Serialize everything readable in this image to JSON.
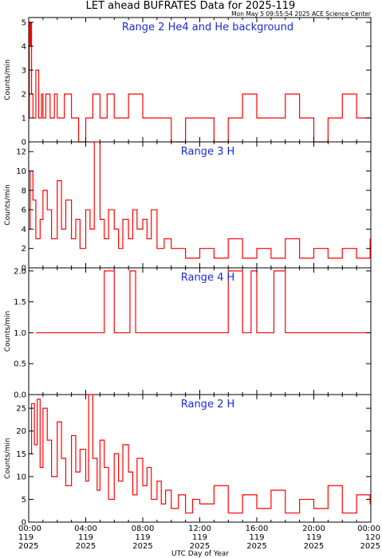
{
  "title": "LET ahead BUFRATES Data for 2025-119",
  "timestamp": "Mon May  5 09:55:54 2025 ACE Science Center",
  "xlabel": "UTC Day of Year",
  "colors": {
    "data": "#ff0000",
    "panel_title": "#1a2bd6",
    "axes": "#000000"
  },
  "chart_data": [
    {
      "type": "line",
      "title": "Range 2 He4 and He background",
      "ylabel": "Counts/min",
      "ylim": [
        0,
        5.2
      ],
      "yticks": [
        "0",
        "1",
        "2",
        "3",
        "4",
        "5"
      ],
      "xlim": [
        0,
        24
      ],
      "series": [
        {
          "color": "#ff0000",
          "x": [
            0.0,
            0.05,
            0.1,
            0.15,
            0.2,
            0.3,
            0.5,
            0.7,
            0.9,
            1.0,
            1.2,
            1.5,
            1.8,
            2.0,
            2.5,
            3.0,
            3.5,
            4.0,
            4.5,
            5.0,
            5.5,
            6.0,
            6.5,
            7.0,
            8.0,
            9.0,
            10.0,
            11.0,
            12.0,
            13.0,
            14.0,
            15.0,
            16.0,
            17.0,
            18.0,
            19.0,
            20.0,
            21.0,
            22.0,
            23.0,
            23.95
          ],
          "values": [
            1,
            5,
            4,
            5,
            2,
            1,
            3,
            1,
            2,
            1,
            2,
            1,
            2,
            1,
            2,
            1,
            0,
            1,
            2,
            1,
            2,
            1,
            1,
            2,
            1,
            1,
            0,
            1,
            1,
            0,
            1,
            2,
            1,
            1,
            2,
            1,
            0,
            1,
            2,
            1,
            1
          ]
        }
      ]
    },
    {
      "type": "line",
      "title": "Range 3 H",
      "ylabel": "Counts/min",
      "ylim": [
        0,
        13
      ],
      "yticks": [
        "0",
        "2",
        "4",
        "6",
        "8",
        "10",
        "12"
      ],
      "xlim": [
        0,
        24
      ],
      "series": [
        {
          "color": "#ff0000",
          "x": [
            0.0,
            0.1,
            0.3,
            0.5,
            0.8,
            1.0,
            1.3,
            1.6,
            2.0,
            2.3,
            2.6,
            3.0,
            3.3,
            3.6,
            4.0,
            4.3,
            4.6,
            5.0,
            5.3,
            5.6,
            6.0,
            6.3,
            6.6,
            7.0,
            7.3,
            7.6,
            8.0,
            8.3,
            8.6,
            9.0,
            9.5,
            10.0,
            11.0,
            12.0,
            13.0,
            14.0,
            15.0,
            16.0,
            17.0,
            18.0,
            19.0,
            20.0,
            21.0,
            22.0,
            23.0,
            23.95
          ],
          "values": [
            4,
            10,
            7,
            3,
            5,
            8,
            6,
            3,
            9,
            4,
            7,
            3,
            5,
            2,
            6,
            4,
            13,
            5,
            3,
            6,
            4,
            2,
            5,
            3,
            6,
            4,
            5,
            3,
            6,
            2,
            3,
            2,
            1,
            2,
            1,
            3,
            1,
            2,
            1,
            3,
            1,
            2,
            1,
            2,
            1,
            3
          ]
        }
      ]
    },
    {
      "type": "line",
      "title": "Range 4 H",
      "ylabel": "Counts/min",
      "ylim": [
        0,
        2.05
      ],
      "yticks": [
        "0.0",
        "0.5",
        "1.0",
        "1.5",
        "2.0"
      ],
      "xlim": [
        0,
        24
      ],
      "series": [
        {
          "color": "#ff0000",
          "x": [
            0.5,
            1.0,
            1.5,
            2.0,
            2.5,
            3.0,
            3.5,
            4.0,
            4.5,
            5.0,
            5.3,
            6.0,
            6.5,
            7.1,
            7.5,
            8.0,
            9.0,
            10.0,
            11.0,
            12.0,
            13.0,
            14.0,
            15.0,
            15.6,
            16.0,
            17.2,
            18.0,
            19.0,
            20.0,
            21.0,
            22.0,
            23.0
          ],
          "values": [
            1,
            1,
            1,
            1,
            1,
            1,
            1,
            1,
            1,
            1,
            2,
            1,
            1,
            2,
            1,
            1,
            1,
            1,
            1,
            1,
            1,
            2,
            1,
            2,
            1,
            2,
            1,
            1,
            1,
            1,
            1,
            1
          ]
        }
      ]
    },
    {
      "type": "line",
      "title": "Range 2 H",
      "ylabel": "Counts/min",
      "ylim": [
        0,
        28
      ],
      "yticks": [
        "0",
        "5",
        "10",
        "15",
        "20",
        "25"
      ],
      "xlim": [
        0,
        24
      ],
      "xticks": [
        {
          "time": "00:00",
          "day": "119",
          "year": "2025"
        },
        {
          "time": "04:00",
          "day": "119",
          "year": "2025"
        },
        {
          "time": "08:00",
          "day": "119",
          "year": "2025"
        },
        {
          "time": "12:00",
          "day": "119",
          "year": "2025"
        },
        {
          "time": "16:00",
          "day": "119",
          "year": "2025"
        },
        {
          "time": "20:00",
          "day": "119",
          "year": "2025"
        },
        {
          "time": "00:00",
          "day": "120",
          "year": "2025"
        }
      ],
      "series": [
        {
          "color": "#ff0000",
          "x": [
            0.0,
            0.2,
            0.4,
            0.6,
            0.8,
            1.0,
            1.3,
            1.6,
            2.0,
            2.3,
            2.6,
            3.0,
            3.3,
            3.6,
            4.0,
            4.2,
            4.5,
            4.8,
            5.0,
            5.3,
            5.6,
            6.0,
            6.3,
            6.6,
            7.0,
            7.3,
            7.6,
            8.0,
            8.3,
            8.6,
            9.0,
            9.3,
            9.6,
            10.0,
            10.5,
            11.0,
            11.5,
            12.0,
            13.0,
            14.0,
            15.0,
            16.0,
            17.0,
            18.0,
            19.0,
            20.0,
            21.0,
            22.0,
            23.0,
            23.95
          ],
          "values": [
            15,
            26,
            17,
            27,
            12,
            25,
            18,
            10,
            22,
            14,
            8,
            19,
            11,
            16,
            9,
            28,
            14,
            7,
            18,
            12,
            5,
            15,
            9,
            17,
            11,
            6,
            14,
            8,
            12,
            5,
            9,
            4,
            7,
            3,
            6,
            2,
            5,
            4,
            8,
            2,
            6,
            3,
            7,
            2,
            5,
            3,
            8,
            2,
            6,
            4
          ]
        }
      ]
    }
  ]
}
